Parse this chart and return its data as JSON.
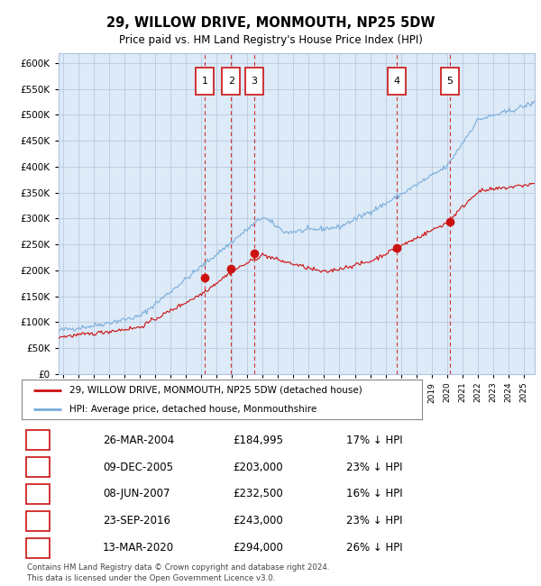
{
  "title": "29, WILLOW DRIVE, MONMOUTH, NP25 5DW",
  "subtitle": "Price paid vs. HM Land Registry's House Price Index (HPI)",
  "footer_line1": "Contains HM Land Registry data © Crown copyright and database right 2024.",
  "footer_line2": "This data is licensed under the Open Government Licence v3.0.",
  "legend_label_red": "29, WILLOW DRIVE, MONMOUTH, NP25 5DW (detached house)",
  "legend_label_blue": "HPI: Average price, detached house, Monmouthshire",
  "hpi_color": "#7aaddb",
  "price_color": "#cc1111",
  "bg_color": "#ddeaf7",
  "grid_color": "#b0c4de",
  "transactions": [
    {
      "num": 1,
      "date": "26-MAR-2004",
      "price": 184995,
      "pct": "17% ↓ HPI",
      "date_dec": 2004.23
    },
    {
      "num": 2,
      "date": "09-DEC-2005",
      "price": 203000,
      "pct": "23% ↓ HPI",
      "date_dec": 2005.94
    },
    {
      "num": 3,
      "date": "08-JUN-2007",
      "price": 232500,
      "pct": "16% ↓ HPI",
      "date_dec": 2007.44
    },
    {
      "num": 4,
      "date": "23-SEP-2016",
      "price": 243000,
      "pct": "23% ↓ HPI",
      "date_dec": 2016.73
    },
    {
      "num": 5,
      "date": "13-MAR-2020",
      "price": 294000,
      "pct": "26% ↓ HPI",
      "date_dec": 2020.2
    }
  ],
  "ylim": [
    0,
    620000
  ],
  "yticks": [
    0,
    50000,
    100000,
    150000,
    200000,
    250000,
    300000,
    350000,
    400000,
    450000,
    500000,
    550000,
    600000
  ],
  "xlim_start": 1994.7,
  "xlim_end": 2025.7
}
